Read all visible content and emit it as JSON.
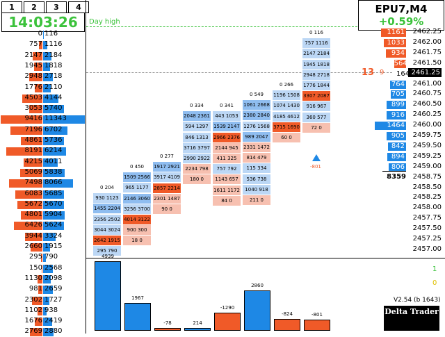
{
  "tabs": [
    "1",
    "2",
    "3",
    "4"
  ],
  "clock": "14:03:26",
  "symbol": "EPU7,M4",
  "change": "+0.59%",
  "day_high_label": "Day high",
  "current_marker": {
    "label": "13",
    "sub": "9",
    "vol": "164",
    "price": "2461.25"
  },
  "total_volume": "8359",
  "version": "V2.54 (b 1643)",
  "logo_text": "Delta Trader",
  "right_indicators": [
    "1",
    "0"
  ],
  "left_profile": [
    [
      "0",
      "116"
    ],
    [
      "757",
      "1116"
    ],
    [
      "2147",
      "2184"
    ],
    [
      "1945",
      "1818"
    ],
    [
      "2948",
      "2718"
    ],
    [
      "1776",
      "2110"
    ],
    [
      "4503",
      "4144"
    ],
    [
      "3053",
      "5740"
    ],
    [
      "9416",
      "11343"
    ],
    [
      "7196",
      "6702"
    ],
    [
      "4861",
      "5736"
    ],
    [
      "8191",
      "6214"
    ],
    [
      "4215",
      "4011"
    ],
    [
      "5069",
      "5838"
    ],
    [
      "7498",
      "8066"
    ],
    [
      "6083",
      "5685"
    ],
    [
      "5672",
      "5670"
    ],
    [
      "4801",
      "5904"
    ],
    [
      "6426",
      "5624"
    ],
    [
      "3944",
      "3324"
    ],
    [
      "2660",
      "1915"
    ],
    [
      "295",
      "790"
    ],
    [
      "150",
      "2568"
    ],
    [
      "1130",
      "2098"
    ],
    [
      "981",
      "2659"
    ],
    [
      "2302",
      "1727"
    ],
    [
      "1102",
      "938"
    ],
    [
      "1676",
      "2419"
    ],
    [
      "2769",
      "2880"
    ]
  ],
  "prices": [
    "2462.25",
    "2462.00",
    "2461.75",
    "2461.50",
    "2461.25",
    "2461.00",
    "2460.75",
    "2460.50",
    "2460.25",
    "2460.00",
    "2459.75",
    "2459.50",
    "2459.25",
    "2459.00",
    "2458.75",
    "2458.50",
    "2458.25",
    "2458.00",
    "2457.75",
    "2457.50",
    "2457.25",
    "2457.00"
  ],
  "price_volumes": [
    "1161",
    "1033",
    "934",
    "564",
    "164",
    "764",
    "705",
    "899",
    "916",
    "1464",
    "905",
    "842",
    "894",
    "806"
  ],
  "columns": [
    {
      "cells": [
        [
          "0",
          "204"
        ],
        [
          "930",
          "1123"
        ],
        [
          "1455",
          "2204"
        ],
        [
          "2356",
          "2502"
        ],
        [
          "3044",
          "3024"
        ],
        [
          "2642",
          "1915"
        ],
        [
          "295",
          "790"
        ]
      ],
      "delta": "4939"
    },
    {
      "cells": [
        [
          "0",
          "450"
        ],
        [
          "1509",
          "2566"
        ],
        [
          "965",
          "1177"
        ],
        [
          "2146",
          "3060"
        ],
        [
          "3256",
          "3700"
        ],
        [
          "4014",
          "3122"
        ],
        [
          "900",
          "300"
        ],
        [
          "18",
          "0"
        ]
      ],
      "delta": "1967"
    },
    {
      "cells": [
        [
          "0",
          "277"
        ],
        [
          "1917",
          "2921"
        ],
        [
          "3917",
          "4109"
        ],
        [
          "2857",
          "2214"
        ],
        [
          "2301",
          "1487"
        ],
        [
          "90",
          "0"
        ]
      ],
      "delta": "-78"
    },
    {
      "cells": [
        [
          "0",
          "334"
        ],
        [
          "2048",
          "2361"
        ],
        [
          "594",
          "1297"
        ],
        [
          "846",
          "1313"
        ],
        [
          "3716",
          "3797"
        ],
        [
          "2990",
          "2922"
        ],
        [
          "2234",
          "798"
        ],
        [
          "180",
          "0"
        ]
      ],
      "delta": "214"
    },
    {
      "cells": [
        [
          "0",
          "341"
        ],
        [
          "443",
          "1053"
        ],
        [
          "1539",
          "2147"
        ],
        [
          "2966",
          "2376"
        ],
        [
          "2144",
          "945"
        ],
        [
          "411",
          "325"
        ],
        [
          "757",
          "792"
        ],
        [
          "1143",
          "657"
        ],
        [
          "1611",
          "1172"
        ],
        [
          "84",
          "0"
        ]
      ],
      "delta": "-1290"
    },
    {
      "cells": [
        [
          "0",
          "549"
        ],
        [
          "1061",
          "2668"
        ],
        [
          "2380",
          "2840"
        ],
        [
          "1276",
          "1568"
        ],
        [
          "989",
          "2047"
        ],
        [
          "2331",
          "1472"
        ],
        [
          "814",
          "479"
        ],
        [
          "115",
          "334"
        ],
        [
          "536",
          "738"
        ],
        [
          "1040",
          "918"
        ],
        [
          "211",
          "0"
        ]
      ],
      "delta": "2860"
    },
    {
      "cells": [
        [
          "0",
          "266"
        ],
        [
          "1196",
          "1508"
        ],
        [
          "1074",
          "1430"
        ],
        [
          "4185",
          "4612"
        ],
        [
          "3715",
          "1690"
        ],
        [
          "60",
          "0"
        ]
      ],
      "delta": "-824"
    },
    {
      "cells": [
        [
          "0",
          "116"
        ],
        [
          "757",
          "1116"
        ],
        [
          "2147",
          "2184"
        ],
        [
          "1945",
          "1818"
        ],
        [
          "2948",
          "2718"
        ],
        [
          "1776",
          "1844"
        ],
        [
          "3307",
          "2087"
        ],
        [
          "916",
          "967"
        ],
        [
          "360",
          "577"
        ],
        [
          "72",
          "0"
        ]
      ],
      "delta": "-801"
    }
  ],
  "triangle_label": "-801",
  "colors": {
    "bid": "#f05a28",
    "ask": "#1e88e5",
    "lightblue": "#bcd7f5",
    "lightred": "#f7c0b0",
    "green": "#3bc23b"
  }
}
